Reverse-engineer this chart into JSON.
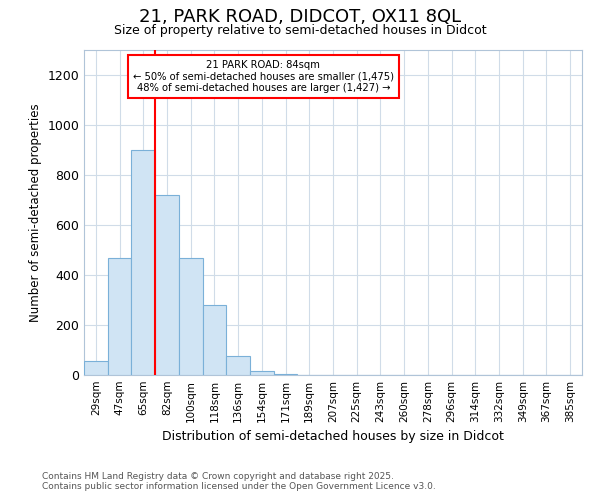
{
  "title": "21, PARK ROAD, DIDCOT, OX11 8QL",
  "subtitle": "Size of property relative to semi-detached houses in Didcot",
  "xlabel": "Distribution of semi-detached houses by size in Didcot",
  "ylabel": "Number of semi-detached properties",
  "bins": [
    "29sqm",
    "47sqm",
    "65sqm",
    "82sqm",
    "100sqm",
    "118sqm",
    "136sqm",
    "154sqm",
    "171sqm",
    "189sqm",
    "207sqm",
    "225sqm",
    "243sqm",
    "260sqm",
    "278sqm",
    "296sqm",
    "314sqm",
    "332sqm",
    "349sqm",
    "367sqm",
    "385sqm"
  ],
  "values": [
    55,
    470,
    900,
    720,
    470,
    280,
    75,
    18,
    5,
    0,
    0,
    0,
    0,
    0,
    0,
    0,
    0,
    0,
    0,
    0,
    0
  ],
  "bar_color": "#d0e4f4",
  "bar_edge_color": "#7ab0d8",
  "red_line_bin_index": 3,
  "red_line_label": "21 PARK ROAD: 84sqm",
  "annotation_line1": "← 50% of semi-detached houses are smaller (1,475)",
  "annotation_line2": "48% of semi-detached houses are larger (1,427) →",
  "ylim": [
    0,
    1300
  ],
  "yticks": [
    0,
    200,
    400,
    600,
    800,
    1000,
    1200
  ],
  "footer_line1": "Contains HM Land Registry data © Crown copyright and database right 2025.",
  "footer_line2": "Contains public sector information licensed under the Open Government Licence v3.0.",
  "bg_color": "#ffffff",
  "grid_color": "#d0dce8"
}
